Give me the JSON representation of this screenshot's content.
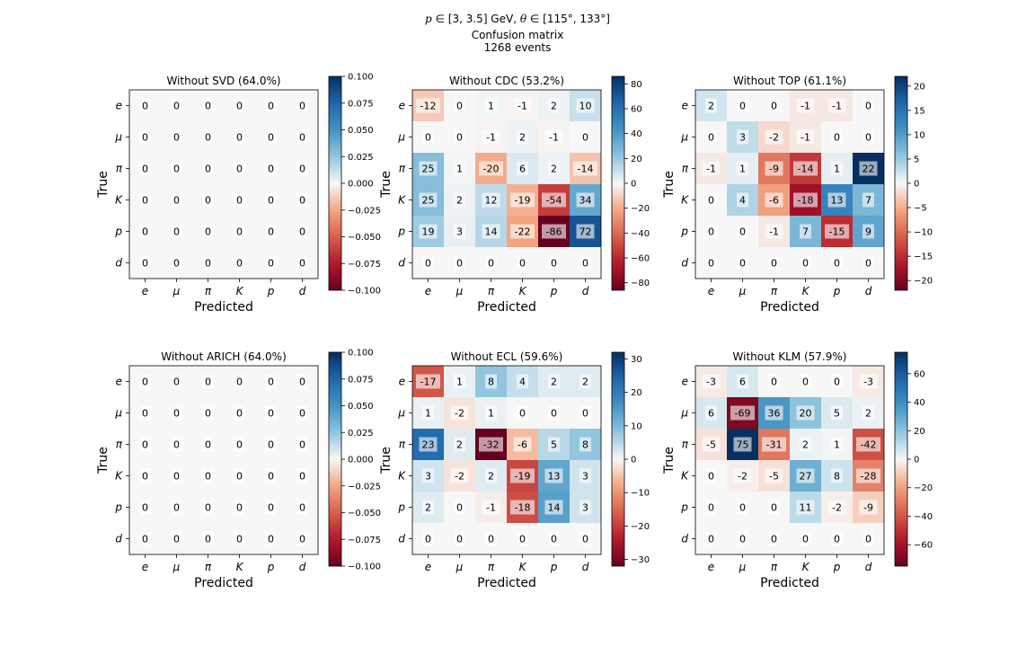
{
  "figure": {
    "suptitle_var_p": "p",
    "suptitle_range_p": " ∈ [3, 3.5] GeV, ",
    "suptitle_var_theta": "θ",
    "suptitle_range_theta": " ∈ [115°, 133°]",
    "suptitle_line2": "Confusion matrix",
    "suptitle_line3": "1268 events"
  },
  "chart_data": [
    {
      "type": "heatmap",
      "title": "Without SVD (64.0%)",
      "xlabel": "Predicted",
      "ylabel": "True",
      "x_categories": [
        "e",
        "μ",
        "π",
        "K",
        "p",
        "d"
      ],
      "y_categories": [
        "e",
        "μ",
        "π",
        "K",
        "p",
        "d"
      ],
      "values": [
        [
          0,
          0,
          0,
          0,
          0,
          0
        ],
        [
          0,
          0,
          0,
          0,
          0,
          0
        ],
        [
          0,
          0,
          0,
          0,
          0,
          0
        ],
        [
          0,
          0,
          0,
          0,
          0,
          0
        ],
        [
          0,
          0,
          0,
          0,
          0,
          0
        ],
        [
          0,
          0,
          0,
          0,
          0,
          0
        ]
      ],
      "vmin": -0.1,
      "vmax": 0.1,
      "colorbar_ticks": [
        0.1,
        0.075,
        0.05,
        0.025,
        0.0,
        -0.025,
        -0.05,
        -0.075,
        -0.1
      ],
      "colorbar_tick_labels": [
        "0.100",
        "0.075",
        "0.050",
        "0.025",
        "0.000",
        "−0.025",
        "−0.050",
        "−0.075",
        "−0.100"
      ],
      "colormap": "RdBu"
    },
    {
      "type": "heatmap",
      "title": "Without CDC (53.2%)",
      "xlabel": "Predicted",
      "ylabel": "True",
      "x_categories": [
        "e",
        "μ",
        "π",
        "K",
        "p",
        "d"
      ],
      "y_categories": [
        "e",
        "μ",
        "π",
        "K",
        "p",
        "d"
      ],
      "values": [
        [
          -12,
          0,
          1,
          -1,
          2,
          10
        ],
        [
          0,
          0,
          -1,
          2,
          -1,
          0
        ],
        [
          25,
          1,
          -20,
          6,
          2,
          -14
        ],
        [
          25,
          2,
          12,
          -19,
          -54,
          34
        ],
        [
          19,
          3,
          14,
          -22,
          -86,
          72
        ],
        [
          0,
          0,
          0,
          0,
          0,
          0
        ]
      ],
      "vmin": -86,
      "vmax": 86,
      "colorbar_ticks": [
        80,
        60,
        40,
        20,
        0,
        -20,
        -40,
        -60,
        -80
      ],
      "colorbar_tick_labels": [
        "80",
        "60",
        "40",
        "20",
        "0",
        "−20",
        "−40",
        "−60",
        "−80"
      ],
      "colormap": "RdBu"
    },
    {
      "type": "heatmap",
      "title": "Without TOP (61.1%)",
      "xlabel": "Predicted",
      "ylabel": "True",
      "x_categories": [
        "e",
        "μ",
        "π",
        "K",
        "p",
        "d"
      ],
      "y_categories": [
        "e",
        "μ",
        "π",
        "K",
        "p",
        "d"
      ],
      "values": [
        [
          2,
          0,
          0,
          -1,
          -1,
          0
        ],
        [
          0,
          3,
          -2,
          -1,
          0,
          0
        ],
        [
          -1,
          1,
          -9,
          -14,
          1,
          22
        ],
        [
          0,
          4,
          -6,
          -18,
          13,
          7
        ],
        [
          0,
          0,
          -1,
          7,
          -15,
          9
        ],
        [
          0,
          0,
          0,
          0,
          0,
          0
        ]
      ],
      "vmin": -22,
      "vmax": 22,
      "colorbar_ticks": [
        20,
        15,
        10,
        5,
        0,
        -5,
        -10,
        -15,
        -20
      ],
      "colorbar_tick_labels": [
        "20",
        "15",
        "10",
        "5",
        "0",
        "−5",
        "−10",
        "−15",
        "−20"
      ],
      "colormap": "RdBu"
    },
    {
      "type": "heatmap",
      "title": "Without ARICH (64.0%)",
      "xlabel": "Predicted",
      "ylabel": "True",
      "x_categories": [
        "e",
        "μ",
        "π",
        "K",
        "p",
        "d"
      ],
      "y_categories": [
        "e",
        "μ",
        "π",
        "K",
        "p",
        "d"
      ],
      "values": [
        [
          0,
          0,
          0,
          0,
          0,
          0
        ],
        [
          0,
          0,
          0,
          0,
          0,
          0
        ],
        [
          0,
          0,
          0,
          0,
          0,
          0
        ],
        [
          0,
          0,
          0,
          0,
          0,
          0
        ],
        [
          0,
          0,
          0,
          0,
          0,
          0
        ],
        [
          0,
          0,
          0,
          0,
          0,
          0
        ]
      ],
      "vmin": -0.1,
      "vmax": 0.1,
      "colorbar_ticks": [
        0.1,
        0.075,
        0.05,
        0.025,
        0.0,
        -0.025,
        -0.05,
        -0.075,
        -0.1
      ],
      "colorbar_tick_labels": [
        "0.100",
        "0.075",
        "0.050",
        "0.025",
        "0.000",
        "−0.025",
        "−0.050",
        "−0.075",
        "−0.100"
      ],
      "colormap": "RdBu"
    },
    {
      "type": "heatmap",
      "title": "Without ECL (59.6%)",
      "xlabel": "Predicted",
      "ylabel": "True",
      "x_categories": [
        "e",
        "μ",
        "π",
        "K",
        "p",
        "d"
      ],
      "y_categories": [
        "e",
        "μ",
        "π",
        "K",
        "p",
        "d"
      ],
      "values": [
        [
          -17,
          1,
          8,
          4,
          2,
          2
        ],
        [
          1,
          -2,
          1,
          0,
          0,
          0
        ],
        [
          23,
          2,
          -32,
          -6,
          5,
          8
        ],
        [
          3,
          -2,
          2,
          -19,
          13,
          3
        ],
        [
          2,
          0,
          -1,
          -18,
          14,
          3
        ],
        [
          0,
          0,
          0,
          0,
          0,
          0
        ]
      ],
      "vmin": -32,
      "vmax": 32,
      "colorbar_ticks": [
        30,
        20,
        10,
        0,
        -10,
        -20,
        -30
      ],
      "colorbar_tick_labels": [
        "30",
        "20",
        "10",
        "0",
        "−10",
        "−20",
        "−30"
      ],
      "colormap": "RdBu"
    },
    {
      "type": "heatmap",
      "title": "Without KLM (57.9%)",
      "xlabel": "Predicted",
      "ylabel": "True",
      "x_categories": [
        "e",
        "μ",
        "π",
        "K",
        "p",
        "d"
      ],
      "y_categories": [
        "e",
        "μ",
        "π",
        "K",
        "p",
        "d"
      ],
      "values": [
        [
          -3,
          6,
          0,
          0,
          0,
          -3
        ],
        [
          6,
          -69,
          36,
          20,
          5,
          2
        ],
        [
          -5,
          75,
          -31,
          2,
          1,
          -42
        ],
        [
          0,
          -2,
          -5,
          27,
          8,
          -28
        ],
        [
          0,
          0,
          0,
          11,
          -2,
          -9
        ],
        [
          0,
          0,
          0,
          0,
          0,
          0
        ]
      ],
      "vmin": -75,
      "vmax": 75,
      "colorbar_ticks": [
        60,
        40,
        20,
        0,
        -20,
        -40,
        -60
      ],
      "colorbar_tick_labels": [
        "60",
        "40",
        "20",
        "0",
        "−20",
        "−40",
        "−60"
      ],
      "colormap": "RdBu"
    }
  ]
}
